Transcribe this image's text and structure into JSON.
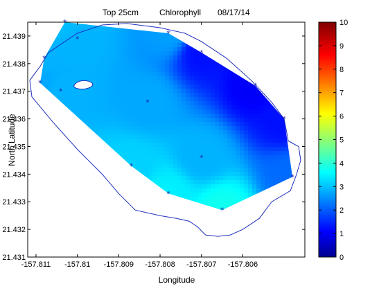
{
  "title_parts": [
    "Top 25cm",
    "Chlorophyll",
    "08/17/14"
  ],
  "chart_data": {
    "type": "heatmap",
    "title": "Top 25cm        Chlorophyll        08/17/14",
    "xlabel": "Longitude",
    "ylabel": "North Latitude",
    "xlim": [
      -157.8112,
      -157.8045
    ],
    "ylim": [
      21.431,
      21.4395
    ],
    "x_ticks": [
      "-157.811",
      "-157.81",
      "-157.809",
      "-157.808",
      "-157.807",
      "-157.806"
    ],
    "x_tick_values": [
      -157.811,
      -157.81,
      -157.809,
      -157.808,
      -157.807,
      -157.806
    ],
    "y_ticks": [
      "21.431",
      "21.432",
      "21.433",
      "21.434",
      "21.435",
      "21.436",
      "21.437",
      "21.438",
      "21.439"
    ],
    "y_tick_values": [
      21.431,
      21.432,
      21.433,
      21.434,
      21.435,
      21.436,
      21.437,
      21.438,
      21.439
    ],
    "colorbar": {
      "min": 0,
      "max": 10,
      "ticks": [
        "0",
        "1",
        "2",
        "3",
        "4",
        "5",
        "6",
        "7",
        "8",
        "9",
        "10"
      ],
      "colormap": "jet"
    },
    "stations": [
      {
        "x": -157.8109,
        "y": 21.4373,
        "value": 2.9
      },
      {
        "x": -157.8108,
        "y": 21.4382,
        "value": 3.0
      },
      {
        "x": -157.8103,
        "y": 21.4395,
        "value": 3.1
      },
      {
        "x": -157.81,
        "y": 21.4389,
        "value": 3.0
      },
      {
        "x": -157.8078,
        "y": 21.4391,
        "value": 2.8
      },
      {
        "x": -157.807,
        "y": 21.4384,
        "value": 1.4
      },
      {
        "x": -157.8057,
        "y": 21.4372,
        "value": 1.2
      },
      {
        "x": -157.805,
        "y": 21.436,
        "value": 1.4
      },
      {
        "x": -157.8048,
        "y": 21.4339,
        "value": 2.3
      },
      {
        "x": -157.8065,
        "y": 21.4327,
        "value": 3.9
      },
      {
        "x": -157.8078,
        "y": 21.4333,
        "value": 3.6
      },
      {
        "x": -157.8087,
        "y": 21.4343,
        "value": 3.3
      },
      {
        "x": -157.807,
        "y": 21.4346,
        "value": 3.0
      },
      {
        "x": -157.8083,
        "y": 21.4366,
        "value": 2.9
      },
      {
        "x": -157.8104,
        "y": 21.437,
        "value": 3.0
      }
    ],
    "grid": false
  },
  "colors": {
    "station_marker": "#2222aa",
    "coastline": "#1f2fbf",
    "island_fill": "#ffffff"
  }
}
